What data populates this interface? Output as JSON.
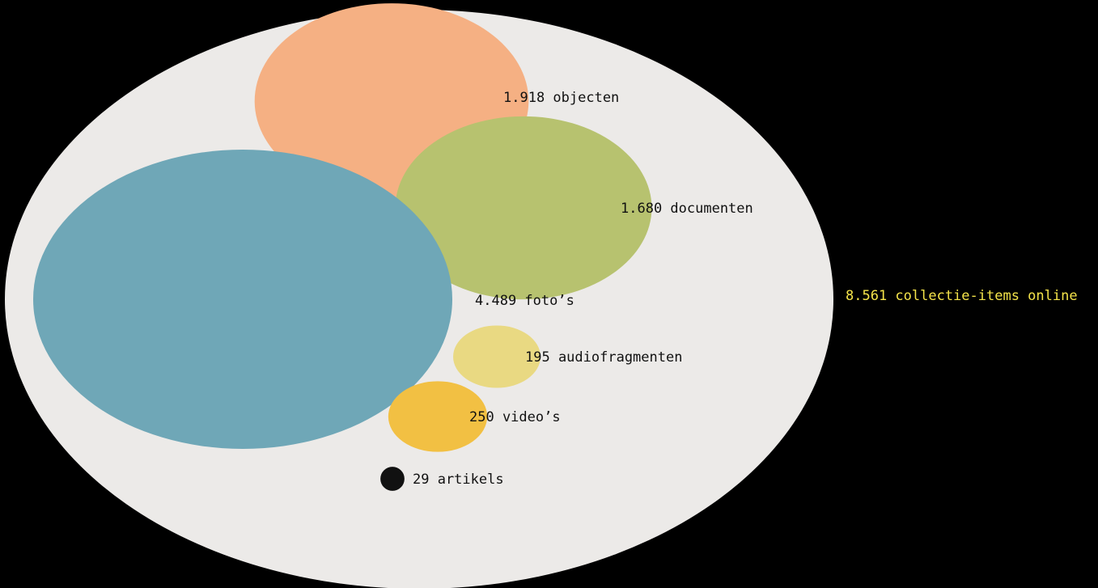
{
  "chart_data": {
    "type": "bubble",
    "total": {
      "value": 8561,
      "label": "8.561 collectie-items online",
      "color": "#ECEAE8",
      "label_color": "#F5E44A"
    },
    "items": [
      {
        "value": 1918,
        "label": "1.918 objecten",
        "color": "#F5B083"
      },
      {
        "value": 1680,
        "label": "1.680 documenten",
        "color": "#B7C26F"
      },
      {
        "value": 4489,
        "label": "4.489 foto’s",
        "color": "#6FA7B7"
      },
      {
        "value": 195,
        "label": "195 audiofragmenten",
        "color": "#E9D982"
      },
      {
        "value": 250,
        "label": "250 video’s",
        "color": "#F2C043"
      },
      {
        "value": 29,
        "label": "29 artikels",
        "color": "#111111"
      }
    ]
  }
}
